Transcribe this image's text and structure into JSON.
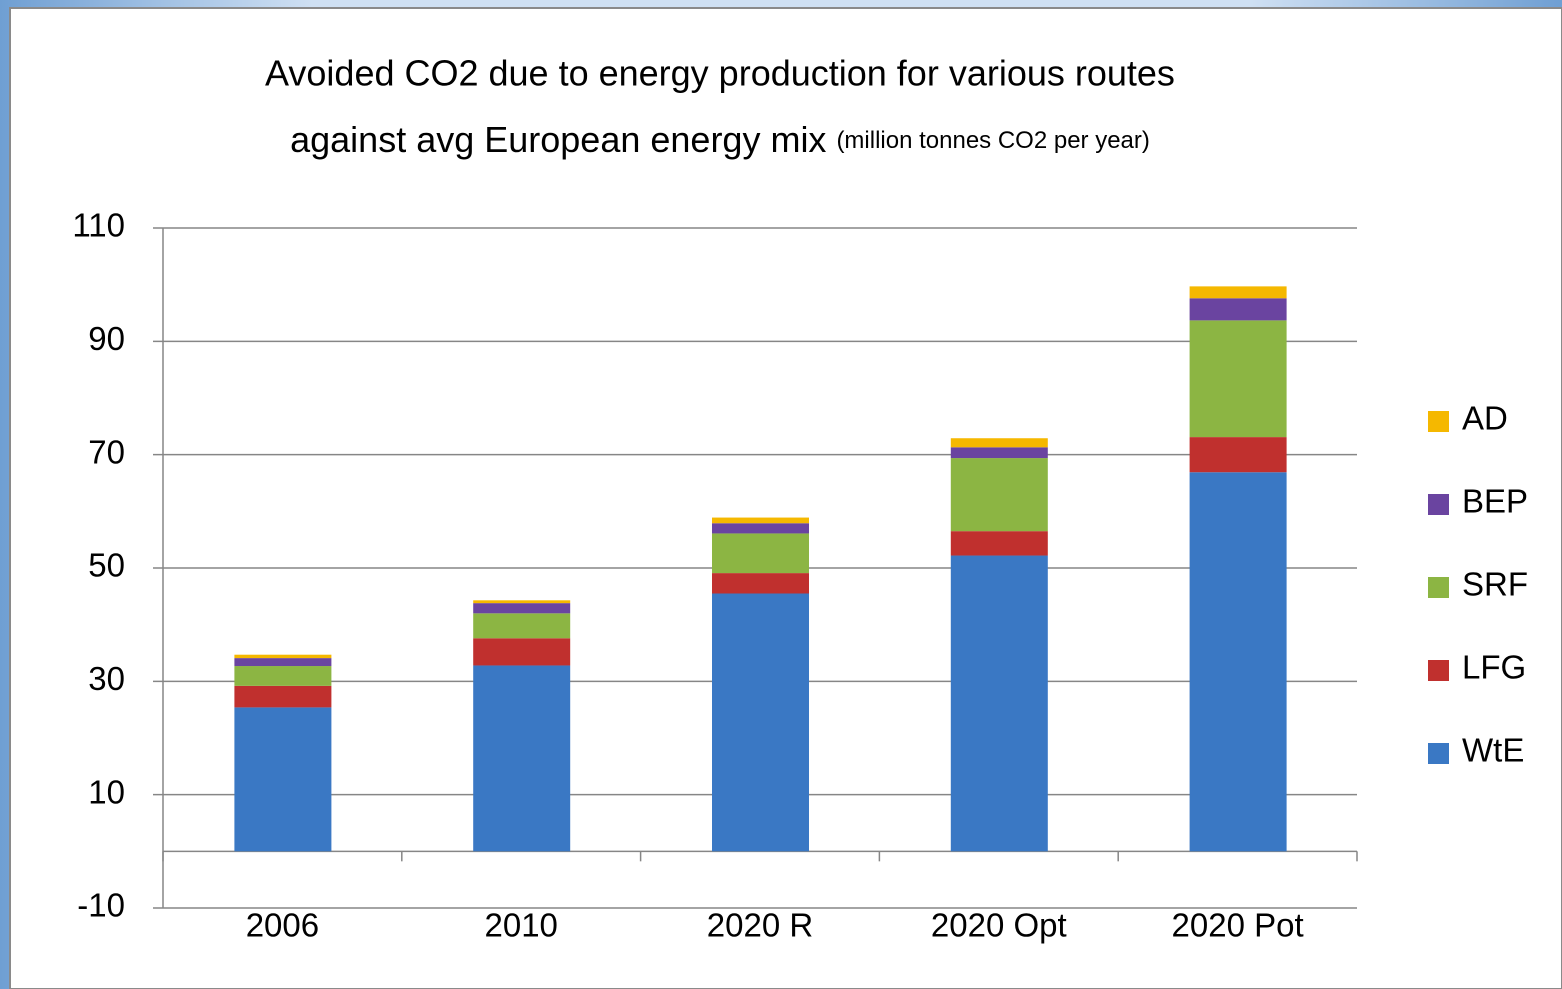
{
  "chart_data": {
    "type": "stacked_bar",
    "title": [
      "Avoided CO2  due to energy production for various routes",
      "against avg European energy mix"
    ],
    "subtitle": "(million tonnes CO2 per year)",
    "categories": [
      "2006",
      "2010",
      "2020 R",
      "2020 Opt",
      "2020 Pot"
    ],
    "series": [
      {
        "name": "WtE",
        "color": "#3a78c4",
        "values": [
          25.4,
          32.8,
          45.5,
          52.2,
          66.9
        ]
      },
      {
        "name": "LFG",
        "color": "#c0302e",
        "values": [
          3.8,
          4.8,
          3.6,
          4.3,
          6.2
        ]
      },
      {
        "name": "SRF",
        "color": "#8cb543",
        "values": [
          3.5,
          4.4,
          7.0,
          12.9,
          20.6
        ]
      },
      {
        "name": "BEP",
        "color": "#6a44a0",
        "values": [
          1.4,
          1.8,
          1.8,
          1.9,
          3.9
        ]
      },
      {
        "name": "AD",
        "color": "#f5b800",
        "values": [
          0.6,
          0.5,
          1.0,
          1.6,
          2.1
        ]
      }
    ],
    "ylim": [
      -10,
      110
    ],
    "yticks": [
      -10,
      10,
      30,
      50,
      70,
      90,
      110
    ],
    "grid": true,
    "legend": "right"
  }
}
